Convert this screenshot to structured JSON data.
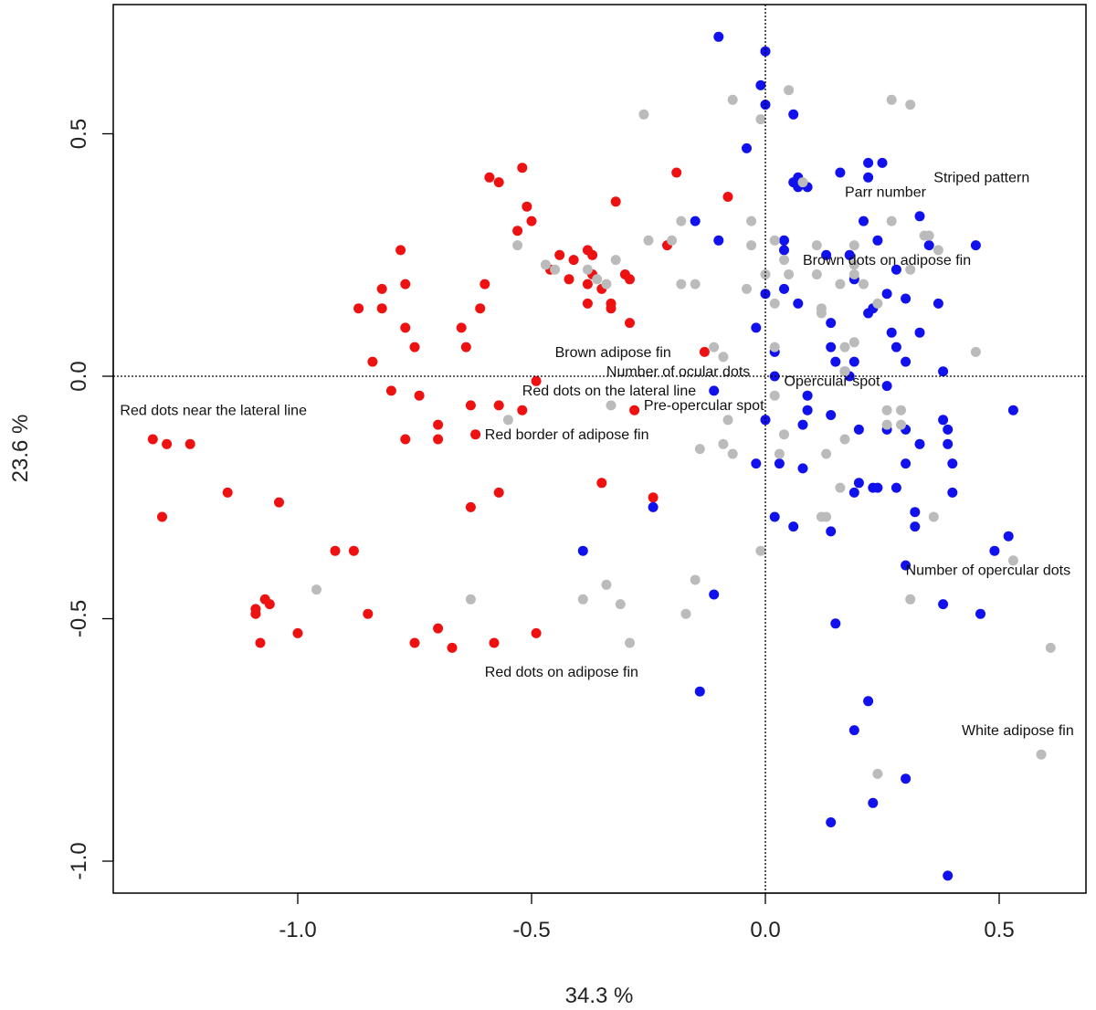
{
  "chart_data": {
    "type": "scatter",
    "title": "",
    "xlabel": "34.3 %",
    "ylabel": "23.6 %",
    "xlim": [
      -1.37,
      0.68
    ],
    "ylim": [
      -1.06,
      0.77
    ],
    "xticks": [
      -1.0,
      -0.5,
      0.0,
      0.5
    ],
    "yticks": [
      -1.0,
      -0.5,
      0.0,
      0.5
    ],
    "xtick_labels": [
      "-1.0",
      "-0.5",
      "0.0",
      "0.5"
    ],
    "ytick_labels": [
      "-1.0",
      "-0.5",
      "0.0",
      "0.5"
    ],
    "reference_lines": {
      "x": 0.0,
      "y": 0.0,
      "style": "dotted"
    },
    "grid": false,
    "legend": "none",
    "colors": {
      "red": "#ee1111",
      "blue": "#1111ee",
      "grey": "#bbbbbb"
    },
    "series": [
      {
        "color": "#ee1111",
        "points": [
          [
            -1.31,
            -0.13
          ],
          [
            -1.28,
            -0.14
          ],
          [
            -1.23,
            -0.14
          ],
          [
            -1.29,
            -0.29
          ],
          [
            -1.15,
            -0.24
          ],
          [
            -1.04,
            -0.26
          ],
          [
            -1.09,
            -0.48
          ],
          [
            -1.09,
            -0.49
          ],
          [
            -1.07,
            -0.46
          ],
          [
            -1.06,
            -0.47
          ],
          [
            -1.08,
            -0.55
          ],
          [
            -1.0,
            -0.53
          ],
          [
            -0.92,
            -0.36
          ],
          [
            -0.88,
            -0.36
          ],
          [
            -0.85,
            -0.49
          ],
          [
            -0.75,
            -0.55
          ],
          [
            -0.7,
            -0.52
          ],
          [
            -0.67,
            -0.56
          ],
          [
            -0.58,
            -0.55
          ],
          [
            -0.49,
            -0.53
          ],
          [
            -0.63,
            -0.27
          ],
          [
            -0.57,
            -0.24
          ],
          [
            -0.35,
            -0.22
          ],
          [
            -0.24,
            -0.25
          ],
          [
            -0.87,
            0.14
          ],
          [
            -0.84,
            0.03
          ],
          [
            -0.82,
            0.18
          ],
          [
            -0.82,
            0.14
          ],
          [
            -0.78,
            0.26
          ],
          [
            -0.77,
            0.1
          ],
          [
            -0.77,
            0.19
          ],
          [
            -0.75,
            0.06
          ],
          [
            -0.65,
            0.1
          ],
          [
            -0.64,
            0.06
          ],
          [
            -0.61,
            0.14
          ],
          [
            -0.6,
            0.19
          ],
          [
            -0.59,
            0.41
          ],
          [
            -0.57,
            0.4
          ],
          [
            -0.53,
            0.3
          ],
          [
            -0.52,
            0.43
          ],
          [
            -0.51,
            0.35
          ],
          [
            -0.5,
            0.32
          ],
          [
            -0.8,
            -0.03
          ],
          [
            -0.74,
            -0.04
          ],
          [
            -0.7,
            -0.1
          ],
          [
            -0.7,
            -0.13
          ],
          [
            -0.77,
            -0.13
          ],
          [
            -0.63,
            -0.06
          ],
          [
            -0.62,
            -0.12
          ],
          [
            -0.57,
            -0.06
          ],
          [
            -0.52,
            -0.07
          ],
          [
            -0.49,
            -0.01
          ],
          [
            -0.46,
            0.22
          ],
          [
            -0.44,
            0.25
          ],
          [
            -0.42,
            0.2
          ],
          [
            -0.41,
            0.24
          ],
          [
            -0.38,
            0.26
          ],
          [
            -0.38,
            0.19
          ],
          [
            -0.37,
            0.25
          ],
          [
            -0.37,
            0.21
          ],
          [
            -0.35,
            0.18
          ],
          [
            -0.33,
            0.15
          ],
          [
            -0.32,
            0.36
          ],
          [
            -0.3,
            0.21
          ],
          [
            -0.29,
            0.2
          ],
          [
            -0.29,
            0.11
          ],
          [
            -0.38,
            0.15
          ],
          [
            -0.33,
            0.14
          ],
          [
            -0.19,
            0.42
          ],
          [
            -0.21,
            0.27
          ],
          [
            -0.08,
            0.37
          ],
          [
            -0.13,
            0.05
          ],
          [
            -0.28,
            -0.07
          ]
        ]
      },
      {
        "color": "#1111ee",
        "points": [
          [
            -0.1,
            0.7
          ],
          [
            0.0,
            0.67
          ],
          [
            -0.01,
            0.6
          ],
          [
            0.0,
            0.56
          ],
          [
            -0.04,
            0.47
          ],
          [
            0.06,
            0.54
          ],
          [
            0.06,
            0.4
          ],
          [
            0.07,
            0.39
          ],
          [
            0.09,
            0.39
          ],
          [
            0.07,
            0.41
          ],
          [
            0.16,
            0.42
          ],
          [
            0.22,
            0.44
          ],
          [
            0.25,
            0.44
          ],
          [
            0.22,
            0.41
          ],
          [
            0.21,
            0.32
          ],
          [
            0.33,
            0.33
          ],
          [
            0.35,
            0.27
          ],
          [
            0.45,
            0.27
          ],
          [
            0.24,
            0.28
          ],
          [
            -0.15,
            0.32
          ],
          [
            -0.1,
            0.28
          ],
          [
            0.04,
            0.28
          ],
          [
            0.04,
            0.26
          ],
          [
            0.0,
            0.17
          ],
          [
            0.04,
            0.18
          ],
          [
            0.07,
            0.15
          ],
          [
            0.13,
            0.25
          ],
          [
            0.18,
            0.25
          ],
          [
            0.19,
            0.2
          ],
          [
            0.22,
            0.13
          ],
          [
            0.28,
            0.22
          ],
          [
            0.3,
            0.16
          ],
          [
            0.26,
            0.17
          ],
          [
            0.37,
            0.15
          ],
          [
            0.23,
            0.14
          ],
          [
            0.33,
            0.09
          ],
          [
            0.27,
            0.09
          ],
          [
            0.28,
            0.06
          ],
          [
            0.3,
            0.03
          ],
          [
            0.38,
            0.01
          ],
          [
            -0.02,
            0.1
          ],
          [
            0.02,
            0.05
          ],
          [
            0.14,
            0.11
          ],
          [
            0.14,
            0.06
          ],
          [
            0.15,
            0.03
          ],
          [
            0.17,
            0.01
          ],
          [
            0.19,
            0.03
          ],
          [
            0.18,
            0.0
          ],
          [
            0.02,
            0.0
          ],
          [
            0.09,
            -0.04
          ],
          [
            0.26,
            -0.02
          ],
          [
            0.09,
            -0.07
          ],
          [
            0.08,
            -0.1
          ],
          [
            0.0,
            -0.09
          ],
          [
            0.14,
            -0.08
          ],
          [
            0.2,
            -0.11
          ],
          [
            0.26,
            -0.11
          ],
          [
            0.3,
            -0.11
          ],
          [
            0.33,
            -0.14
          ],
          [
            0.38,
            -0.09
          ],
          [
            0.39,
            -0.11
          ],
          [
            0.39,
            -0.14
          ],
          [
            0.4,
            -0.18
          ],
          [
            0.53,
            -0.07
          ],
          [
            0.03,
            -0.18
          ],
          [
            0.08,
            -0.19
          ],
          [
            0.2,
            -0.22
          ],
          [
            0.23,
            -0.23
          ],
          [
            0.24,
            -0.23
          ],
          [
            0.28,
            -0.23
          ],
          [
            0.3,
            -0.18
          ],
          [
            0.32,
            -0.28
          ],
          [
            0.32,
            -0.31
          ],
          [
            0.4,
            -0.24
          ],
          [
            0.02,
            -0.29
          ],
          [
            0.06,
            -0.31
          ],
          [
            0.14,
            -0.32
          ],
          [
            -0.02,
            -0.18
          ],
          [
            -0.24,
            -0.27
          ],
          [
            -0.39,
            -0.36
          ],
          [
            -0.11,
            -0.45
          ],
          [
            0.15,
            -0.51
          ],
          [
            0.3,
            -0.39
          ],
          [
            0.38,
            -0.47
          ],
          [
            0.46,
            -0.49
          ],
          [
            0.49,
            -0.36
          ],
          [
            0.52,
            -0.33
          ],
          [
            -0.14,
            -0.65
          ],
          [
            0.22,
            -0.67
          ],
          [
            0.19,
            -0.73
          ],
          [
            0.3,
            -0.83
          ],
          [
            0.23,
            -0.88
          ],
          [
            0.14,
            -0.92
          ],
          [
            0.39,
            -1.03
          ],
          [
            -0.11,
            -0.03
          ],
          [
            0.19,
            -0.24
          ]
        ]
      },
      {
        "color": "#bbbbbb",
        "points": [
          [
            -0.26,
            0.54
          ],
          [
            -0.07,
            0.57
          ],
          [
            -0.01,
            0.53
          ],
          [
            0.05,
            0.59
          ],
          [
            0.08,
            0.4
          ],
          [
            0.27,
            0.57
          ],
          [
            0.31,
            0.56
          ],
          [
            -0.18,
            0.32
          ],
          [
            -0.2,
            0.28
          ],
          [
            -0.25,
            0.28
          ],
          [
            -0.03,
            0.32
          ],
          [
            -0.03,
            0.27
          ],
          [
            0.0,
            0.21
          ],
          [
            -0.04,
            0.18
          ],
          [
            0.02,
            0.15
          ],
          [
            0.02,
            0.28
          ],
          [
            0.04,
            0.24
          ],
          [
            0.05,
            0.21
          ],
          [
            0.11,
            0.27
          ],
          [
            0.11,
            0.21
          ],
          [
            0.12,
            0.14
          ],
          [
            0.12,
            0.13
          ],
          [
            0.16,
            0.19
          ],
          [
            0.19,
            0.27
          ],
          [
            0.19,
            0.23
          ],
          [
            0.19,
            0.21
          ],
          [
            0.21,
            0.19
          ],
          [
            0.24,
            0.15
          ],
          [
            0.27,
            0.32
          ],
          [
            0.31,
            0.22
          ],
          [
            0.34,
            0.29
          ],
          [
            0.35,
            0.29
          ],
          [
            0.37,
            0.26
          ],
          [
            -0.53,
            0.27
          ],
          [
            -0.47,
            0.23
          ],
          [
            -0.45,
            0.22
          ],
          [
            -0.38,
            0.22
          ],
          [
            -0.36,
            0.2
          ],
          [
            -0.34,
            0.19
          ],
          [
            -0.32,
            0.24
          ],
          [
            -0.18,
            0.19
          ],
          [
            -0.15,
            0.19
          ],
          [
            -0.11,
            0.06
          ],
          [
            -0.09,
            0.04
          ],
          [
            0.02,
            0.06
          ],
          [
            0.17,
            0.06
          ],
          [
            0.17,
            0.01
          ],
          [
            0.19,
            0.07
          ],
          [
            0.45,
            0.05
          ],
          [
            0.02,
            -0.04
          ],
          [
            -0.33,
            -0.06
          ],
          [
            -0.55,
            -0.09
          ],
          [
            -0.08,
            -0.09
          ],
          [
            -0.14,
            -0.15
          ],
          [
            -0.09,
            -0.14
          ],
          [
            -0.07,
            -0.16
          ],
          [
            0.03,
            -0.16
          ],
          [
            0.04,
            -0.12
          ],
          [
            0.13,
            -0.16
          ],
          [
            0.17,
            -0.13
          ],
          [
            0.26,
            -0.07
          ],
          [
            0.26,
            -0.1
          ],
          [
            0.29,
            -0.07
          ],
          [
            0.29,
            -0.1
          ],
          [
            0.16,
            -0.23
          ],
          [
            0.12,
            -0.29
          ],
          [
            0.13,
            -0.29
          ],
          [
            0.36,
            -0.29
          ],
          [
            -0.01,
            -0.36
          ],
          [
            -0.96,
            -0.44
          ],
          [
            -0.63,
            -0.46
          ],
          [
            -0.39,
            -0.46
          ],
          [
            -0.34,
            -0.43
          ],
          [
            -0.31,
            -0.47
          ],
          [
            -0.29,
            -0.55
          ],
          [
            -0.15,
            -0.42
          ],
          [
            -0.17,
            -0.49
          ],
          [
            0.31,
            -0.46
          ],
          [
            0.53,
            -0.38
          ],
          [
            0.61,
            -0.56
          ],
          [
            0.59,
            -0.78
          ],
          [
            0.24,
            -0.82
          ]
        ]
      }
    ],
    "annotations": [
      {
        "text": "Striped pattern",
        "x": 0.36,
        "y": 0.4
      },
      {
        "text": "Parr number",
        "x": 0.17,
        "y": 0.37
      },
      {
        "text": "Brown dots on adipose fin",
        "x": 0.08,
        "y": 0.23
      },
      {
        "text": "Brown adipose fin",
        "x": -0.45,
        "y": 0.04
      },
      {
        "text": "Number of ocular dots",
        "x": -0.34,
        "y": 0.0
      },
      {
        "text": "Opercular spot",
        "x": 0.04,
        "y": -0.02
      },
      {
        "text": "Red dots on the lateral line",
        "x": -0.52,
        "y": -0.04
      },
      {
        "text": "Pre-opercular spot",
        "x": -0.26,
        "y": -0.07
      },
      {
        "text": "Red dots near the lateral line",
        "x": -1.38,
        "y": -0.08
      },
      {
        "text": "Red border of adipose fin",
        "x": -0.6,
        "y": -0.13
      },
      {
        "text": "Number of opercular dots",
        "x": 0.3,
        "y": -0.41
      },
      {
        "text": "Red dots on adipose fin",
        "x": -0.6,
        "y": -0.62
      },
      {
        "text": "White adipose fin",
        "x": 0.42,
        "y": -0.74
      }
    ]
  }
}
